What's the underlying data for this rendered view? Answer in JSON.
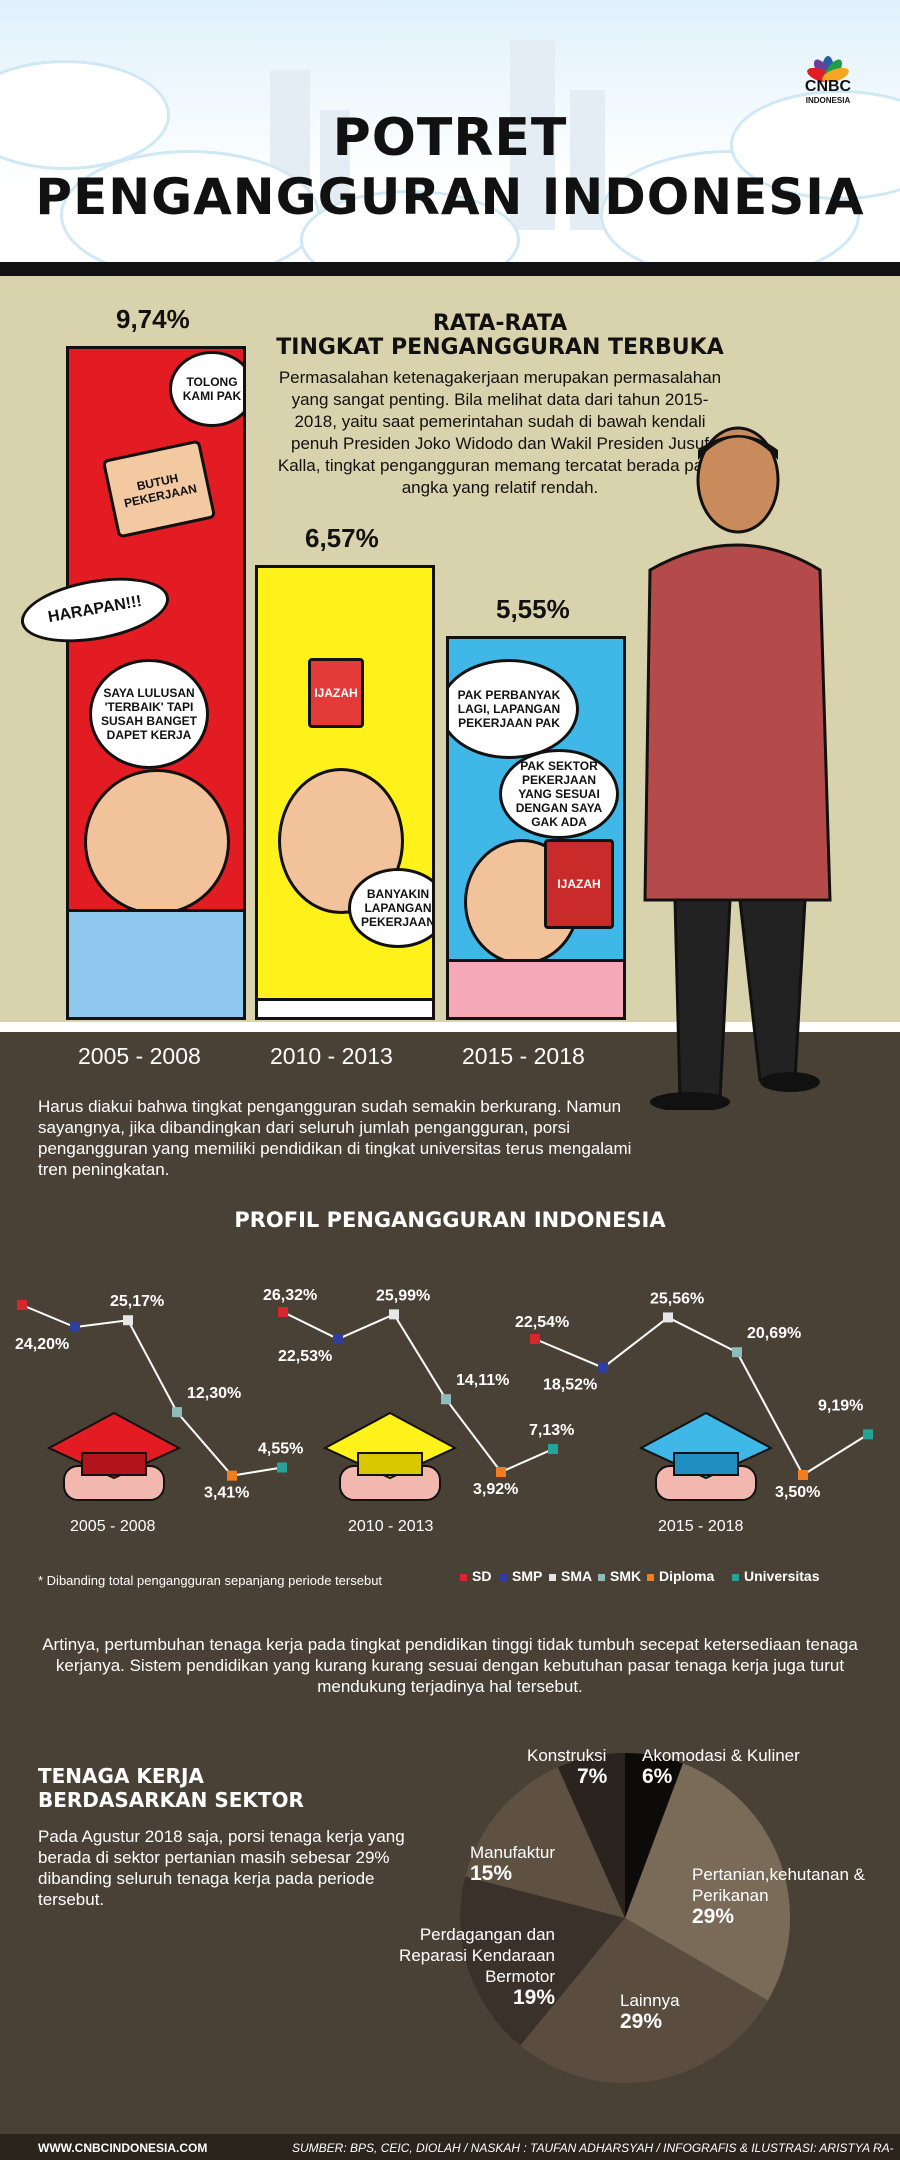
{
  "header": {
    "title_line1": "POTRET",
    "title_line2": "PENGANGGURAN INDONESIA",
    "logo": "CNBC",
    "logo_sub": "INDONESIA"
  },
  "intro": {
    "title_line1": "RATA-RATA",
    "title_line2": "TINGKAT PENGANGGURAN TERBUKA",
    "body": "Permasalahan ketenagakerjaan merupakan permasalahan yang sangat penting. Bila melihat data dari tahun 2015-2018, yaitu saat pemerintahan sudah di bawah kendali penuh Presiden Joko Widodo dan Wakil Presiden Jusuf Kalla, tingkat pengangguran memang tercatat berada pada angka yang relatif rendah."
  },
  "bubbles": {
    "b1": "TOLONG KAMI PAK",
    "b2": "BUTUH PEKERJAAN",
    "b3": "HARAPAN!!!",
    "b4": "SAYA LULUSAN 'TERBAIK' TAPI SUSAH BANGET DAPET KERJA",
    "b5": "IJAZAH",
    "b6": "BANYAKIN LAPANGAN PEKERJAAN",
    "b7": "PAK PERBANYAK LAGI, LAPANGAN PEKERJAAN PAK",
    "b8": "PAK SEKTOR PEKERJAAN YANG SESUAI DENGAN SAYA GAK ADA",
    "b9": "IJAZAH"
  },
  "paragraphs": {
    "p1": "Harus diakui bahwa tingkat pengangguran sudah semakin berkurang. Namun sayangnya, jika dibandingkan dari seluruh jumlah pengangguran, porsi pengangguran yang memiliki pendidikan di tingkat universitas terus mengalami tren peningkatan.",
    "p2": "Artinya, pertumbuhan tenaga kerja pada tingkat pendidikan tinggi tidak tumbuh secepat ketersediaan tenaga kerjanya. Sistem pendidikan yang kurang kurang sesuai dengan kebutuhan pasar tenaga kerja juga turut mendukung terjadinya hal tersebut."
  },
  "profile": {
    "title": "PROFIL PENGANGGURAN INDONESIA",
    "footnote": "* Dibanding total pengangguran sepanjang periode tersebut"
  },
  "sector": {
    "title_line1": "TENAGA KERJA",
    "title_line2": "BERDASARKAN SEKTOR",
    "body": "Pada Agustur 2018 saja, porsi tenaga kerja yang berada di sektor pertanian masih sebesar 29% dibanding seluruh tenaga kerja pada periode tersebut."
  },
  "footer": {
    "left": "WWW.CNBCINDONESIA.COM",
    "right": "SUMBER: BPS, CEIC, DIOLAH / NASKAH : TAUFAN ADHARSYAH / INFOGRAFIS & ILUSTRASI: ARISTYA RA-"
  },
  "colors": {
    "bar1": "#e31b23",
    "bar2": "#fff21a",
    "bar3": "#3fb8e8",
    "band": "#d9d3ad",
    "dark": "#4a4136"
  },
  "chart_data": [
    {
      "type": "bar",
      "title": "RATA-RATA TINGKAT PENGANGGURAN TERBUKA",
      "categories": [
        "2005 - 2008",
        "2010 - 2013",
        "2015 - 2018"
      ],
      "values": [
        9.74,
        6.57,
        5.55
      ],
      "value_labels": [
        "9,74%",
        "6,57%",
        "5,55%"
      ]
    },
    {
      "type": "line",
      "title": "PROFIL PENGANGGURAN INDONESIA",
      "categories": [
        "SD",
        "SMP",
        "SMA",
        "SMK",
        "Diploma",
        "Universitas"
      ],
      "series_colors": [
        "#d9262c",
        "#2e3f9e",
        "#e6e6e6",
        "#8fbcb9",
        "#f07d21",
        "#24a39a"
      ],
      "groups": [
        {
          "name": "2005 - 2008",
          "values": [
            null,
            24.2,
            25.17,
            12.3,
            3.41,
            4.55
          ],
          "labels": [
            "",
            "24,20%",
            "25,17%",
            "12,30%",
            "3,41%",
            "4,55%"
          ]
        },
        {
          "name": "2010 - 2013",
          "values": [
            26.32,
            22.53,
            25.99,
            14.11,
            3.92,
            7.13
          ],
          "labels": [
            "26,32%",
            "22,53%",
            "25,99%",
            "14,11%",
            "3,92%",
            "7,13%"
          ]
        },
        {
          "name": "2015 - 2018",
          "values": [
            22.54,
            18.52,
            25.56,
            20.69,
            3.5,
            9.19
          ],
          "labels": [
            "22,54%",
            "18,52%",
            "25,56%",
            "20,69%",
            "3,50%",
            "9,19%"
          ]
        }
      ]
    },
    {
      "type": "pie",
      "title": "TENAGA KERJA BERDASARKAN SEKTOR",
      "slices": [
        {
          "label": "Akomodasi & Kuliner",
          "value": 6,
          "text": "6%",
          "color": "#0d0b09"
        },
        {
          "label": "Pertanian,kehutanan & Perikanan",
          "value": 29,
          "text": "29%",
          "color": "#7a6b59"
        },
        {
          "label": "Lainnya",
          "value": 29,
          "text": "29%",
          "color": "#5a4d3f"
        },
        {
          "label": "Perdagangan dan Reparasi Kendaraan Bermotor",
          "value": 19,
          "text": "19%",
          "color": "#3a312a"
        },
        {
          "label": "Manufaktur",
          "value": 15,
          "text": "15%",
          "color": "#5e5142"
        },
        {
          "label": "Konstruksi",
          "value": 7,
          "text": "7%",
          "color": "#2b241e"
        }
      ]
    }
  ]
}
